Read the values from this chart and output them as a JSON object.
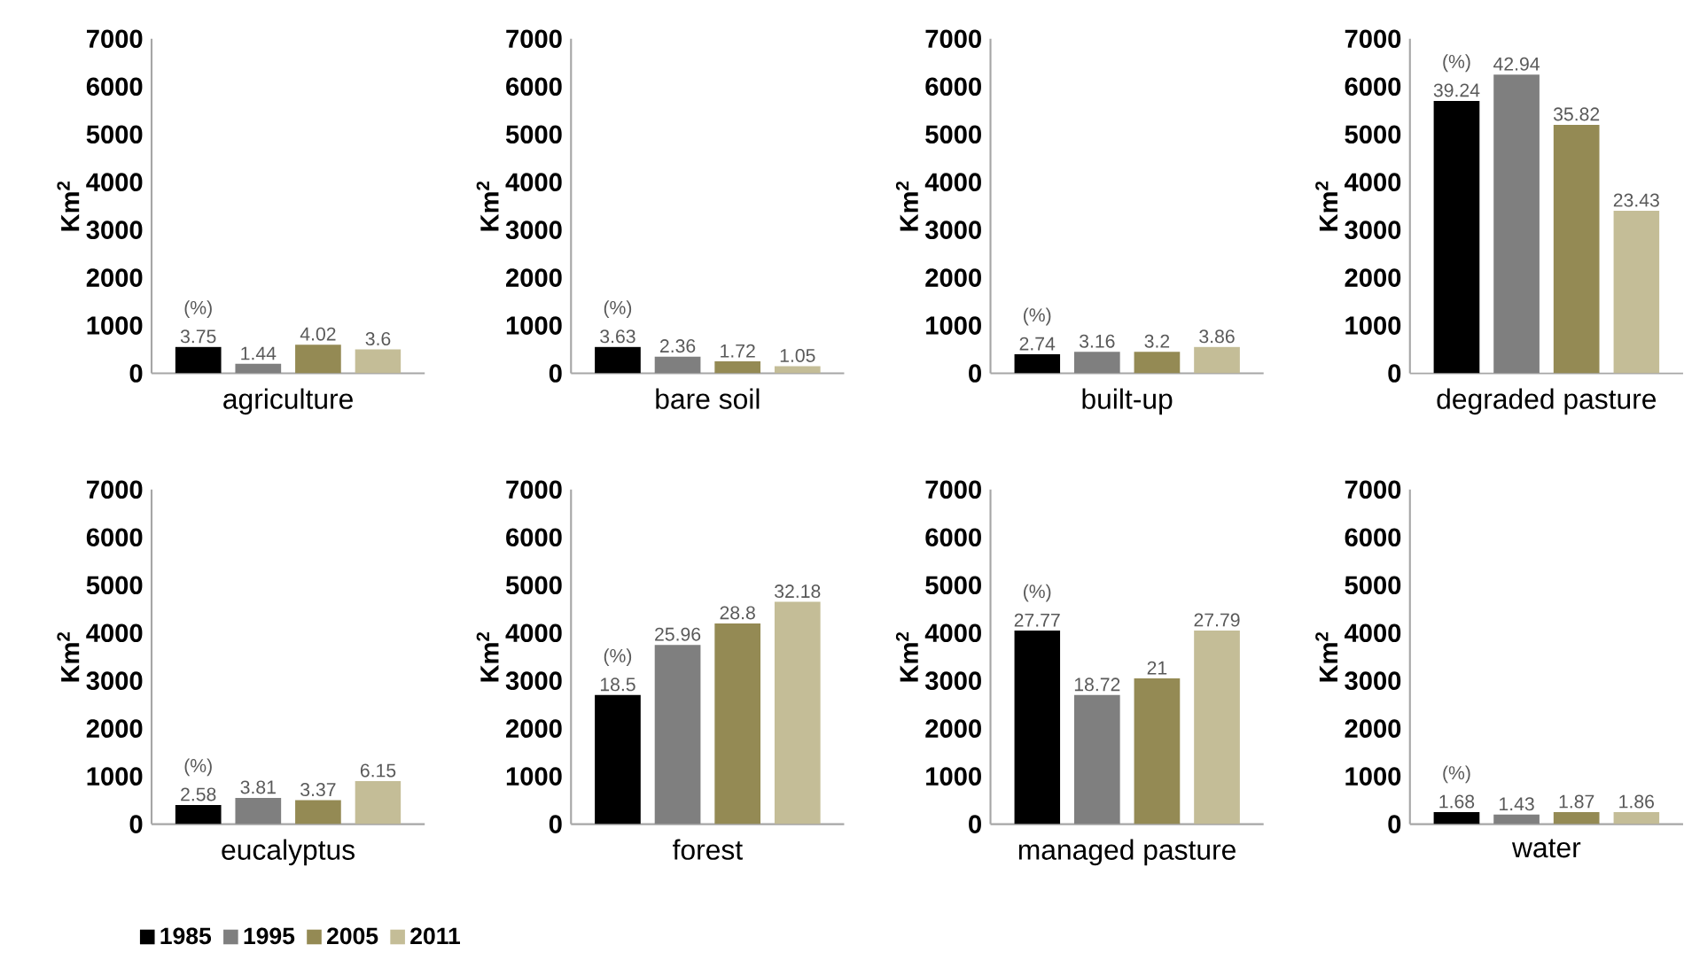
{
  "chart_data": [
    {
      "type": "bar",
      "xlabel": "agriculture",
      "ylabel": "Km$^{2}$",
      "categories": [
        null
      ],
      "ylim": [
        0,
        7000
      ],
      "yticks": [
        0,
        1000,
        2000,
        3000,
        4000,
        5000,
        6000,
        7000
      ],
      "annotations": [
        "(%)",
        "3.75",
        "1.44",
        "4.02",
        "3.6"
      ],
      "series": [
        {
          "color": "#000000",
          "values": [
            550
          ]
        },
        {
          "color": "#7f7f7f",
          "values": [
            200
          ]
        },
        {
          "color": "#948a54",
          "values": [
            600
          ]
        },
        {
          "color": "#c4bd97",
          "values": [
            500
          ]
        }
      ]
    },
    {
      "type": "bar",
      "xlabel": "bare soil",
      "ylabel": "Km$^{2}$",
      "categories": [
        null
      ],
      "ylim": [
        0,
        7000
      ],
      "yticks": [
        0,
        1000,
        2000,
        3000,
        4000,
        5000,
        6000,
        7000
      ],
      "annotations": [
        "(%)",
        "3.63",
        "2.36",
        "1.72",
        "1.05"
      ],
      "series": [
        {
          "color": "#000000",
          "values": [
            550
          ]
        },
        {
          "color": "#7f7f7f",
          "values": [
            350
          ]
        },
        {
          "color": "#948a54",
          "values": [
            250
          ]
        },
        {
          "color": "#c4bd97",
          "values": [
            150
          ]
        }
      ]
    },
    {
      "type": "bar",
      "xlabel": "built-up",
      "ylabel": "Km$^{2}$",
      "categories": [
        null
      ],
      "ylim": [
        0,
        7000
      ],
      "yticks": [
        0,
        1000,
        2000,
        3000,
        4000,
        5000,
        6000,
        7000
      ],
      "annotations": [
        "(%)",
        "2.74",
        "3.16",
        "3.2",
        "3.86"
      ],
      "series": [
        {
          "color": "#000000",
          "values": [
            400
          ]
        },
        {
          "color": "#7f7f7f",
          "values": [
            450
          ]
        },
        {
          "color": "#948a54",
          "values": [
            450
          ]
        },
        {
          "color": "#c4bd97",
          "values": [
            550
          ]
        }
      ]
    },
    {
      "type": "bar",
      "xlabel": "degraded pasture",
      "ylabel": "Km$^{2}$",
      "categories": [
        null
      ],
      "ylim": [
        0,
        7000
      ],
      "yticks": [
        0,
        1000,
        2000,
        3000,
        4000,
        5000,
        6000,
        7000
      ],
      "annotations": [
        "(%)",
        "39.24",
        "42.94",
        "35.82",
        "23.43"
      ],
      "series": [
        {
          "color": "#000000",
          "values": [
            5700
          ]
        },
        {
          "color": "#7f7f7f",
          "values": [
            6250
          ]
        },
        {
          "color": "#948a54",
          "values": [
            5200
          ]
        },
        {
          "color": "#c4bd97",
          "values": [
            3400
          ]
        }
      ]
    },
    {
      "type": "bar",
      "xlabel": "eucalyptus",
      "ylabel": "Km$^{2}$",
      "categories": [
        null
      ],
      "ylim": [
        0,
        7000
      ],
      "yticks": [
        0,
        1000,
        2000,
        3000,
        4000,
        5000,
        6000,
        7000
      ],
      "annotations": [
        "(%)",
        "2.58",
        "3.81",
        "3.37",
        "6.15"
      ],
      "legend": "bottom left",
      "series": [
        {
          "name": "1985",
          "color": "#000000",
          "values": [
            400
          ]
        },
        {
          "name": "1995",
          "color": "#7f7f7f",
          "values": [
            550
          ]
        },
        {
          "name": "2005",
          "color": "#948a54",
          "values": [
            500
          ]
        },
        {
          "name": "2011",
          "color": "#c4bd97",
          "values": [
            900
          ]
        }
      ]
    },
    {
      "type": "bar",
      "xlabel": "forest",
      "ylabel": "Km$^{2}$",
      "categories": [
        null
      ],
      "ylim": [
        0,
        7000
      ],
      "yticks": [
        0,
        1000,
        2000,
        3000,
        4000,
        5000,
        6000,
        7000
      ],
      "annotations": [
        "(%)",
        "18.5",
        "25.96",
        "28.8",
        "32.18"
      ],
      "series": [
        {
          "color": "#000000",
          "values": [
            2700
          ]
        },
        {
          "color": "#7f7f7f",
          "values": [
            3750
          ]
        },
        {
          "color": "#948a54",
          "values": [
            4200
          ]
        },
        {
          "color": "#c4bd97",
          "values": [
            4650
          ]
        }
      ]
    },
    {
      "type": "bar",
      "xlabel": "managed pasture",
      "ylabel": "Km$^{2}$",
      "categories": [
        null
      ],
      "ylim": [
        0,
        7000
      ],
      "yticks": [
        0,
        1000,
        2000,
        3000,
        4000,
        5000,
        6000,
        7000
      ],
      "annotations": [
        "(%)",
        "27.77",
        "18.72",
        "21",
        "27.79"
      ],
      "series": [
        {
          "color": "#000000",
          "values": [
            4050
          ]
        },
        {
          "color": "#7f7f7f",
          "values": [
            2700
          ]
        },
        {
          "color": "#948a54",
          "values": [
            3050
          ]
        },
        {
          "color": "#c4bd97",
          "values": [
            4050
          ]
        }
      ]
    },
    {
      "type": "bar",
      "xlabel": "water",
      "ylabel": "Km$^{2}$",
      "categories": [
        null
      ],
      "ylim": [
        0,
        7000
      ],
      "yticks": [
        0,
        1000,
        2000,
        3000,
        4000,
        5000,
        6000,
        7000
      ],
      "annotations": [
        "(%)",
        "1.68",
        "1.43",
        "1.87",
        "1.86"
      ],
      "series": [
        {
          "color": "#000000",
          "values": [
            250
          ]
        },
        {
          "color": "#7f7f7f",
          "values": [
            200
          ]
        },
        {
          "color": "#948a54",
          "values": [
            250
          ]
        },
        {
          "color": "#c4bd97",
          "values": [
            250
          ]
        }
      ]
    }
  ]
}
